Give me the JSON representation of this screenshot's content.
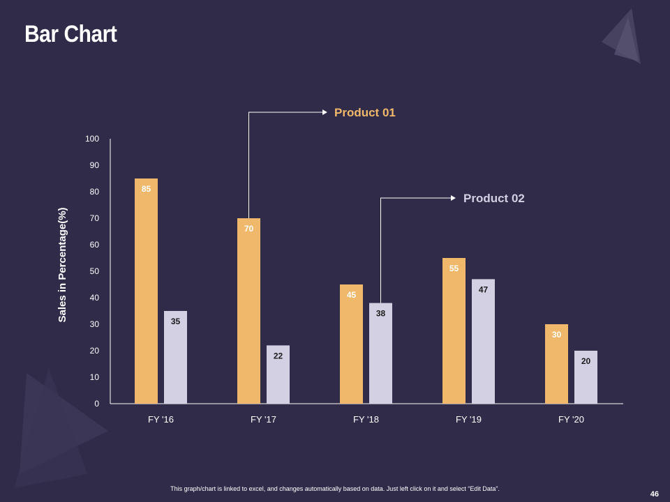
{
  "slide": {
    "title": "Bar Chart",
    "footer_note": "This graph/chart is linked to excel, and changes automatically based on data. Just left click on it and select “Edit Data”.",
    "page_number": "46"
  },
  "colors": {
    "background": "#312b4a",
    "product_01": "#f0b86a",
    "product_02": "#d3d0e4",
    "axis": "#ffffff",
    "decor": "#4a4563"
  },
  "chart_data": {
    "type": "bar",
    "title": "",
    "xlabel": "",
    "ylabel": "Sales in Percentage(%)",
    "ylim": [
      0,
      100
    ],
    "yticks": [
      0,
      10,
      20,
      30,
      40,
      50,
      60,
      70,
      80,
      90,
      100
    ],
    "categories": [
      "FY '16",
      "FY '17",
      "FY '18",
      "FY '19",
      "FY '20"
    ],
    "series": [
      {
        "name": "Product 01",
        "color": "#f0b86a",
        "label_color": "#ffffff",
        "values": [
          85,
          70,
          45,
          55,
          30
        ]
      },
      {
        "name": "Product 02",
        "color": "#d3d0e4",
        "label_color": "#1a1a1a",
        "values": [
          35,
          22,
          38,
          47,
          20
        ]
      }
    ],
    "grid": false,
    "legend": "callouts"
  }
}
